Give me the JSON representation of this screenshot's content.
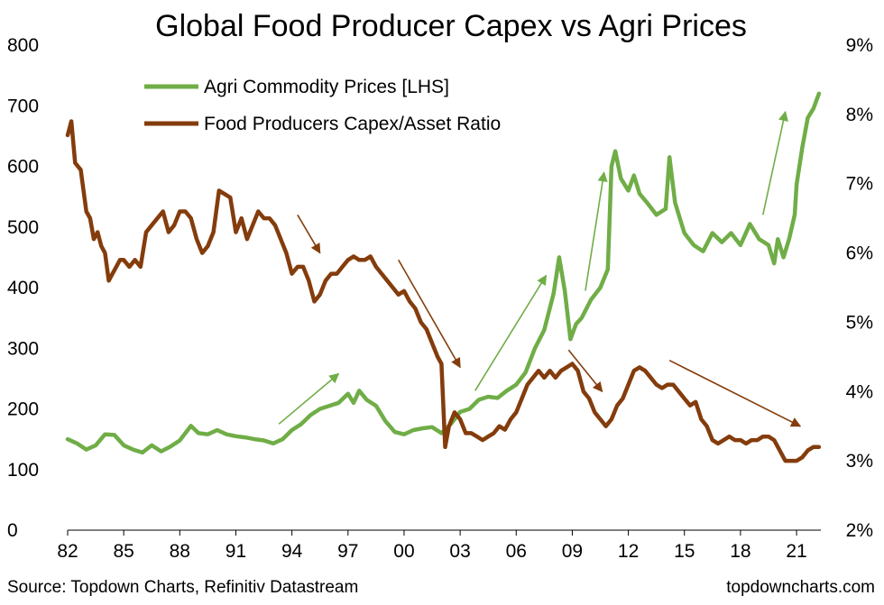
{
  "chart_data": {
    "type": "line",
    "title": "Global Food Producer Capex vs Agri Prices",
    "x_tick_labels": [
      "82",
      "85",
      "88",
      "91",
      "94",
      "97",
      "00",
      "03",
      "06",
      "09",
      "12",
      "15",
      "18",
      "21"
    ],
    "x_tick_years": [
      1982,
      1985,
      1988,
      1991,
      1994,
      1997,
      2000,
      2003,
      2006,
      2009,
      2012,
      2015,
      2018,
      2021
    ],
    "xlim": [
      1982,
      2022.3
    ],
    "left_axis": {
      "ylim": [
        0,
        800
      ],
      "ticks": [
        "0",
        "100",
        "200",
        "300",
        "400",
        "500",
        "600",
        "700",
        "800"
      ],
      "tick_values": [
        0,
        100,
        200,
        300,
        400,
        500,
        600,
        700,
        800
      ]
    },
    "right_axis": {
      "ylim": [
        2,
        9
      ],
      "ticks": [
        "2%",
        "3%",
        "4%",
        "5%",
        "6%",
        "7%",
        "8%",
        "9%"
      ],
      "tick_values": [
        2,
        3,
        4,
        5,
        6,
        7,
        8,
        9
      ]
    },
    "series": [
      {
        "name": "Agri Commodity Prices [LHS]",
        "axis": "left",
        "color": "#70ad47",
        "points": [
          [
            1982.0,
            150
          ],
          [
            1982.5,
            143
          ],
          [
            1983.0,
            133
          ],
          [
            1983.5,
            140
          ],
          [
            1984.0,
            158
          ],
          [
            1984.5,
            157
          ],
          [
            1985.0,
            140
          ],
          [
            1985.5,
            133
          ],
          [
            1986.0,
            128
          ],
          [
            1986.5,
            140
          ],
          [
            1987.0,
            130
          ],
          [
            1987.5,
            138
          ],
          [
            1988.0,
            148
          ],
          [
            1988.6,
            172
          ],
          [
            1989.0,
            160
          ],
          [
            1989.5,
            158
          ],
          [
            1990.0,
            165
          ],
          [
            1990.5,
            158
          ],
          [
            1991.0,
            155
          ],
          [
            1991.5,
            153
          ],
          [
            1992.0,
            150
          ],
          [
            1992.5,
            148
          ],
          [
            1993.0,
            143
          ],
          [
            1993.5,
            150
          ],
          [
            1994.0,
            165
          ],
          [
            1994.5,
            175
          ],
          [
            1995.0,
            190
          ],
          [
            1995.5,
            200
          ],
          [
            1996.0,
            205
          ],
          [
            1996.5,
            210
          ],
          [
            1997.0,
            225
          ],
          [
            1997.3,
            210
          ],
          [
            1997.6,
            230
          ],
          [
            1998.0,
            215
          ],
          [
            1998.5,
            205
          ],
          [
            1999.0,
            180
          ],
          [
            1999.5,
            162
          ],
          [
            2000.0,
            158
          ],
          [
            2000.5,
            165
          ],
          [
            2001.0,
            168
          ],
          [
            2001.5,
            170
          ],
          [
            2002.0,
            160
          ],
          [
            2002.5,
            175
          ],
          [
            2003.0,
            195
          ],
          [
            2003.5,
            200
          ],
          [
            2004.0,
            215
          ],
          [
            2004.5,
            220
          ],
          [
            2005.0,
            218
          ],
          [
            2005.5,
            230
          ],
          [
            2006.0,
            240
          ],
          [
            2006.5,
            260
          ],
          [
            2007.0,
            300
          ],
          [
            2007.5,
            330
          ],
          [
            2008.0,
            390
          ],
          [
            2008.3,
            450
          ],
          [
            2008.6,
            395
          ],
          [
            2008.9,
            315
          ],
          [
            2009.2,
            340
          ],
          [
            2009.5,
            350
          ],
          [
            2010.0,
            380
          ],
          [
            2010.5,
            400
          ],
          [
            2010.9,
            430
          ],
          [
            2011.1,
            600
          ],
          [
            2011.3,
            625
          ],
          [
            2011.6,
            580
          ],
          [
            2012.0,
            560
          ],
          [
            2012.3,
            585
          ],
          [
            2012.6,
            555
          ],
          [
            2013.0,
            540
          ],
          [
            2013.5,
            520
          ],
          [
            2014.0,
            530
          ],
          [
            2014.2,
            615
          ],
          [
            2014.5,
            540
          ],
          [
            2015.0,
            490
          ],
          [
            2015.5,
            470
          ],
          [
            2016.0,
            460
          ],
          [
            2016.5,
            490
          ],
          [
            2017.0,
            475
          ],
          [
            2017.5,
            490
          ],
          [
            2018.0,
            470
          ],
          [
            2018.5,
            505
          ],
          [
            2019.0,
            480
          ],
          [
            2019.5,
            470
          ],
          [
            2019.8,
            440
          ],
          [
            2020.0,
            480
          ],
          [
            2020.3,
            450
          ],
          [
            2020.6,
            480
          ],
          [
            2020.9,
            520
          ],
          [
            2021.0,
            570
          ],
          [
            2021.3,
            630
          ],
          [
            2021.6,
            680
          ],
          [
            2021.9,
            695
          ],
          [
            2022.2,
            720
          ]
        ]
      },
      {
        "name": "Food Producers Capex/Asset Ratio",
        "axis": "right",
        "color": "#843c0c",
        "points": [
          [
            1982.0,
            7.7
          ],
          [
            1982.2,
            7.9
          ],
          [
            1982.4,
            7.3
          ],
          [
            1982.7,
            7.2
          ],
          [
            1983.0,
            6.6
          ],
          [
            1983.2,
            6.5
          ],
          [
            1983.4,
            6.2
          ],
          [
            1983.6,
            6.3
          ],
          [
            1983.8,
            6.1
          ],
          [
            1984.0,
            6.0
          ],
          [
            1984.2,
            5.6
          ],
          [
            1984.4,
            5.7
          ],
          [
            1984.6,
            5.8
          ],
          [
            1984.8,
            5.9
          ],
          [
            1985.0,
            5.9
          ],
          [
            1985.3,
            5.8
          ],
          [
            1985.6,
            5.9
          ],
          [
            1985.9,
            5.8
          ],
          [
            1986.2,
            6.3
          ],
          [
            1986.5,
            6.4
          ],
          [
            1986.8,
            6.5
          ],
          [
            1987.1,
            6.6
          ],
          [
            1987.4,
            6.3
          ],
          [
            1987.7,
            6.4
          ],
          [
            1988.0,
            6.6
          ],
          [
            1988.3,
            6.6
          ],
          [
            1988.6,
            6.5
          ],
          [
            1988.9,
            6.2
          ],
          [
            1989.2,
            6.0
          ],
          [
            1989.5,
            6.1
          ],
          [
            1989.8,
            6.3
          ],
          [
            1990.1,
            6.9
          ],
          [
            1990.4,
            6.85
          ],
          [
            1990.7,
            6.8
          ],
          [
            1991.0,
            6.3
          ],
          [
            1991.3,
            6.5
          ],
          [
            1991.6,
            6.2
          ],
          [
            1991.9,
            6.4
          ],
          [
            1992.2,
            6.6
          ],
          [
            1992.5,
            6.5
          ],
          [
            1992.8,
            6.5
          ],
          [
            1993.1,
            6.4
          ],
          [
            1993.4,
            6.2
          ],
          [
            1993.7,
            6.0
          ],
          [
            1994.0,
            5.7
          ],
          [
            1994.3,
            5.8
          ],
          [
            1994.6,
            5.8
          ],
          [
            1994.9,
            5.6
          ],
          [
            1995.2,
            5.3
          ],
          [
            1995.5,
            5.4
          ],
          [
            1995.8,
            5.6
          ],
          [
            1996.1,
            5.7
          ],
          [
            1996.4,
            5.7
          ],
          [
            1996.7,
            5.8
          ],
          [
            1997.0,
            5.9
          ],
          [
            1997.3,
            5.95
          ],
          [
            1997.6,
            5.9
          ],
          [
            1997.9,
            5.9
          ],
          [
            1998.2,
            5.95
          ],
          [
            1998.5,
            5.8
          ],
          [
            1998.8,
            5.7
          ],
          [
            1999.1,
            5.6
          ],
          [
            1999.4,
            5.5
          ],
          [
            1999.7,
            5.4
          ],
          [
            2000.0,
            5.45
          ],
          [
            2000.3,
            5.3
          ],
          [
            2000.6,
            5.2
          ],
          [
            2000.9,
            5.0
          ],
          [
            2001.2,
            4.9
          ],
          [
            2001.5,
            4.7
          ],
          [
            2001.8,
            4.5
          ],
          [
            2002.0,
            4.4
          ],
          [
            2002.2,
            3.2
          ],
          [
            2002.4,
            3.5
          ],
          [
            2002.7,
            3.7
          ],
          [
            2003.0,
            3.6
          ],
          [
            2003.3,
            3.4
          ],
          [
            2003.6,
            3.4
          ],
          [
            2003.9,
            3.35
          ],
          [
            2004.2,
            3.3
          ],
          [
            2004.5,
            3.35
          ],
          [
            2004.8,
            3.4
          ],
          [
            2005.1,
            3.5
          ],
          [
            2005.4,
            3.45
          ],
          [
            2005.7,
            3.6
          ],
          [
            2006.0,
            3.7
          ],
          [
            2006.3,
            3.9
          ],
          [
            2006.6,
            4.1
          ],
          [
            2006.9,
            4.2
          ],
          [
            2007.2,
            4.3
          ],
          [
            2007.5,
            4.2
          ],
          [
            2007.8,
            4.3
          ],
          [
            2008.1,
            4.2
          ],
          [
            2008.4,
            4.3
          ],
          [
            2008.7,
            4.35
          ],
          [
            2009.0,
            4.4
          ],
          [
            2009.3,
            4.3
          ],
          [
            2009.6,
            4.0
          ],
          [
            2009.9,
            3.9
          ],
          [
            2010.2,
            3.7
          ],
          [
            2010.5,
            3.6
          ],
          [
            2010.8,
            3.5
          ],
          [
            2011.1,
            3.6
          ],
          [
            2011.4,
            3.8
          ],
          [
            2011.7,
            3.9
          ],
          [
            2012.0,
            4.1
          ],
          [
            2012.3,
            4.3
          ],
          [
            2012.6,
            4.35
          ],
          [
            2012.9,
            4.3
          ],
          [
            2013.2,
            4.2
          ],
          [
            2013.5,
            4.1
          ],
          [
            2013.8,
            4.05
          ],
          [
            2014.1,
            4.1
          ],
          [
            2014.4,
            4.1
          ],
          [
            2014.7,
            4.0
          ],
          [
            2015.0,
            3.9
          ],
          [
            2015.3,
            3.8
          ],
          [
            2015.6,
            3.85
          ],
          [
            2015.9,
            3.6
          ],
          [
            2016.2,
            3.5
          ],
          [
            2016.5,
            3.3
          ],
          [
            2016.8,
            3.25
          ],
          [
            2017.1,
            3.3
          ],
          [
            2017.4,
            3.35
          ],
          [
            2017.7,
            3.3
          ],
          [
            2018.0,
            3.3
          ],
          [
            2018.3,
            3.25
          ],
          [
            2018.6,
            3.3
          ],
          [
            2018.9,
            3.3
          ],
          [
            2019.2,
            3.35
          ],
          [
            2019.5,
            3.35
          ],
          [
            2019.8,
            3.3
          ],
          [
            2020.1,
            3.15
          ],
          [
            2020.4,
            3.0
          ],
          [
            2020.7,
            3.0
          ],
          [
            2021.0,
            3.0
          ],
          [
            2021.3,
            3.05
          ],
          [
            2021.6,
            3.15
          ],
          [
            2021.9,
            3.2
          ],
          [
            2022.2,
            3.2
          ]
        ]
      }
    ],
    "annotations": [
      {
        "kind": "arrow",
        "color": "#70ad47",
        "from": [
          1993.3,
          175
        ],
        "to": [
          1996.5,
          258
        ],
        "axis": "left"
      },
      {
        "kind": "arrow",
        "color": "#70ad47",
        "from": [
          2003.8,
          230
        ],
        "to": [
          2007.6,
          420
        ],
        "axis": "left"
      },
      {
        "kind": "arrow",
        "color": "#70ad47",
        "from": [
          2009.7,
          395
        ],
        "to": [
          2010.7,
          590
        ],
        "axis": "left"
      },
      {
        "kind": "arrow",
        "color": "#70ad47",
        "from": [
          2019.2,
          520
        ],
        "to": [
          2020.4,
          690
        ],
        "axis": "left"
      },
      {
        "kind": "arrow",
        "color": "#843c0c",
        "from": [
          1994.3,
          6.55
        ],
        "to": [
          1995.5,
          6.0
        ],
        "axis": "right"
      },
      {
        "kind": "arrow",
        "color": "#843c0c",
        "from": [
          1999.7,
          5.9
        ],
        "to": [
          2003.0,
          4.35
        ],
        "axis": "right"
      },
      {
        "kind": "arrow",
        "color": "#843c0c",
        "from": [
          2008.8,
          4.6
        ],
        "to": [
          2010.6,
          4.0
        ],
        "axis": "right"
      },
      {
        "kind": "arrow",
        "color": "#843c0c",
        "from": [
          2014.2,
          4.45
        ],
        "to": [
          2021.2,
          3.5
        ],
        "axis": "right"
      }
    ],
    "legend_position": "top-left",
    "grid": false
  },
  "footer": {
    "source": "Source: Topdown Charts, Refinitiv Datastream",
    "brand": "topdowncharts.com"
  }
}
